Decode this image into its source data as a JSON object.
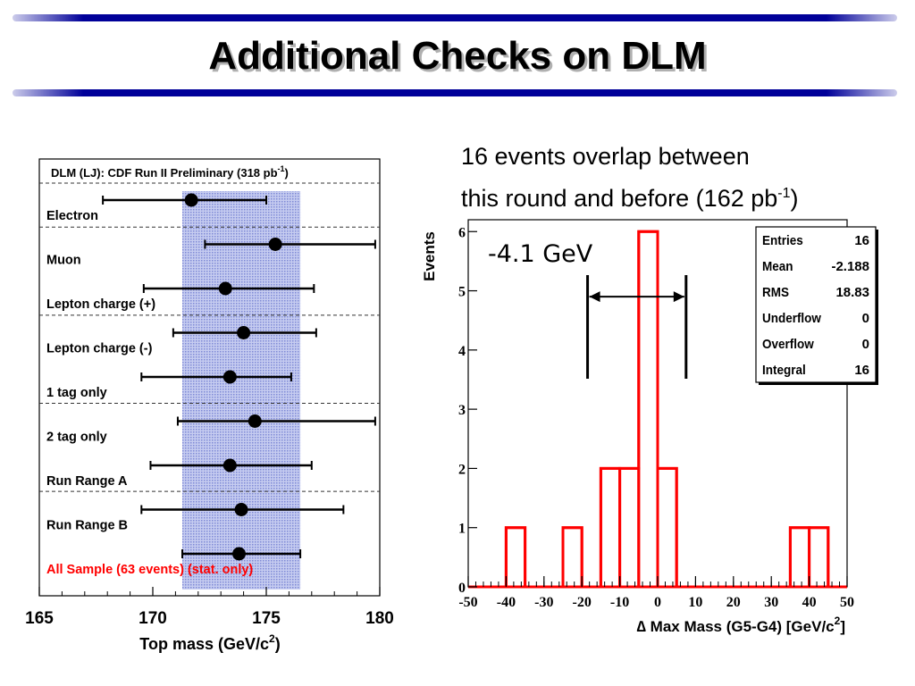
{
  "slide": {
    "title": "Additional Checks on DLM",
    "note_line1": "16 events overlap between",
    "note_line2_text": "this round and before (162 pb",
    "note_line2_sup": "-1",
    "note_line2_end": ")"
  },
  "chart_data": [
    {
      "type": "scatter",
      "title_text": "DLM (LJ): CDF Run II Preliminary (318 pb",
      "title_sup": "-1",
      "title_end": ")",
      "xlabel_text": "Top mass (GeV/c",
      "xlabel_sup": "2",
      "xlabel_end": ")",
      "xlim": [
        165,
        180
      ],
      "xticks": [
        "165",
        "170",
        "175",
        "180"
      ],
      "band": {
        "from": 171.3,
        "to": 176.5,
        "color": "#aab4e8"
      },
      "series": [
        {
          "label": "Electron",
          "value": 171.7,
          "err_lo": 167.8,
          "err_hi": 175.0,
          "color": "#000000"
        },
        {
          "label": "Muon",
          "value": 175.4,
          "err_lo": 172.3,
          "err_hi": 179.8,
          "color": "#000000"
        },
        {
          "label": "Lepton charge (+)",
          "value": 173.2,
          "err_lo": 169.6,
          "err_hi": 177.1,
          "color": "#000000"
        },
        {
          "label": "Lepton charge (-)",
          "value": 174.0,
          "err_lo": 170.9,
          "err_hi": 177.2,
          "color": "#000000"
        },
        {
          "label": "1 tag only",
          "value": 173.4,
          "err_lo": 169.5,
          "err_hi": 176.1,
          "color": "#000000"
        },
        {
          "label": "2 tag only",
          "value": 174.5,
          "err_lo": 171.1,
          "err_hi": 179.8,
          "color": "#000000"
        },
        {
          "label": "Run Range A",
          "value": 173.4,
          "err_lo": 169.9,
          "err_hi": 177.0,
          "color": "#000000"
        },
        {
          "label": "Run Range B",
          "value": 173.9,
          "err_lo": 169.5,
          "err_hi": 178.4,
          "color": "#000000"
        },
        {
          "label": "All Sample (63 events) (stat. only)",
          "value": 173.8,
          "err_lo": 171.3,
          "err_hi": 176.5,
          "color": "#ff0000"
        }
      ],
      "separators_after": [
        0,
        2,
        4,
        6,
        8
      ]
    },
    {
      "type": "bar",
      "ylabel": "Events",
      "xlabel_text": "∆ Max Mass (G5-G4)  [GeV/c",
      "xlabel_sup": "2",
      "xlabel_end": "]",
      "xlim": [
        -50,
        50
      ],
      "ylim": [
        0,
        6.2
      ],
      "xticks": [
        "-50",
        "-40",
        "-30",
        "-20",
        "-10",
        "0",
        "10",
        "20",
        "30",
        "40",
        "50"
      ],
      "yticks": [
        "0",
        "1",
        "2",
        "3",
        "4",
        "5",
        "6"
      ],
      "bin_edges": [
        -50,
        -45,
        -40,
        -35,
        -30,
        -25,
        -20,
        -15,
        -10,
        -5,
        0,
        5,
        10,
        15,
        20,
        25,
        30,
        35,
        40,
        45,
        50
      ],
      "counts": [
        0,
        0,
        1,
        0,
        0,
        1,
        0,
        2,
        2,
        6,
        2,
        0,
        0,
        0,
        0,
        0,
        0,
        1,
        1,
        0
      ],
      "line_color": "#ff0000",
      "annotation": "-4.1 GeV",
      "arrow": {
        "from": -18.5,
        "to": 7.5,
        "y": 4.9
      },
      "stats": [
        {
          "name": "Entries",
          "value": "16"
        },
        {
          "name": "Mean",
          "value": "-2.188"
        },
        {
          "name": "RMS",
          "value": "18.83"
        },
        {
          "name": "Underflow",
          "value": "0"
        },
        {
          "name": "Overflow",
          "value": "0"
        },
        {
          "name": "Integral",
          "value": "16"
        }
      ]
    }
  ],
  "colors": {
    "title_bar": "#000099",
    "band": "#aab4e8"
  }
}
